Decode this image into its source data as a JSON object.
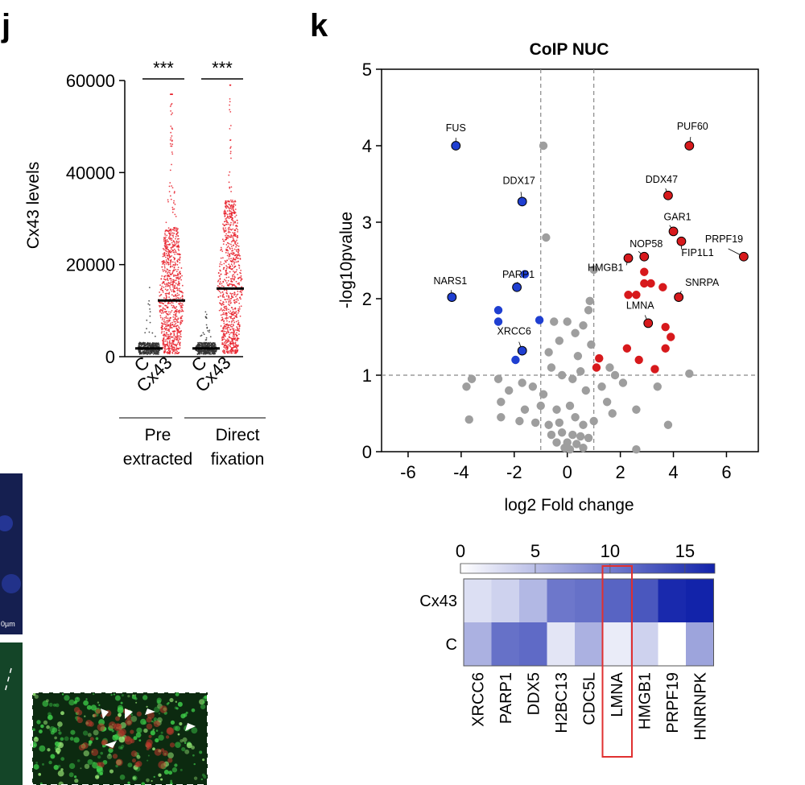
{
  "panels": {
    "j_letter": "j",
    "k_letter": "k"
  },
  "chart_data": [
    {
      "type": "scatter",
      "subtype": "dot-plot",
      "panel": "j",
      "ylabel": "Cx43 levels",
      "ylim": [
        0,
        60000
      ],
      "yticks": [
        0,
        20000,
        40000,
        60000
      ],
      "categories": [
        "C",
        "Cx43",
        "C",
        "Cx43"
      ],
      "groups": [
        {
          "name_line1": "Pre",
          "name_line2": "extracted",
          "categories": [
            "C",
            "Cx43"
          ]
        },
        {
          "name_line1": "Direct",
          "name_line2": "fixation",
          "categories": [
            "C",
            "Cx43"
          ]
        }
      ],
      "medians": [
        1800,
        12200,
        1800,
        14800
      ],
      "spread_max": [
        18000,
        57000,
        10500,
        59000
      ],
      "series_colors": [
        "#333333",
        "#e8202a",
        "#333333",
        "#e8202a"
      ],
      "significance": [
        "***",
        "***"
      ]
    },
    {
      "type": "scatter",
      "subtype": "volcano",
      "panel": "k",
      "title": "CoIP NUC",
      "xlabel": "log2 Fold change",
      "ylabel": "-log10pvalue",
      "xlim": [
        -7,
        7.2
      ],
      "ylim": [
        0,
        5
      ],
      "xticks": [
        -6,
        -4,
        -2,
        0,
        2,
        4,
        6
      ],
      "yticks": [
        0,
        1,
        2,
        3,
        4,
        5
      ],
      "thresholds": {
        "fold_change": [
          -1,
          1
        ],
        "pvalue": 1
      },
      "colors": {
        "up": "#d7191c",
        "down": "#1f3fd1",
        "ns": "#9e9e9e"
      },
      "labeled_points": [
        {
          "gene": "FUS",
          "x": -4.2,
          "y": 4.0,
          "group": "down"
        },
        {
          "gene": "DDX17",
          "x": -1.7,
          "y": 3.27,
          "group": "down"
        },
        {
          "gene": "NARS1",
          "x": -4.35,
          "y": 2.02,
          "group": "down"
        },
        {
          "gene": "PARP1",
          "x": -1.9,
          "y": 2.15,
          "group": "down"
        },
        {
          "gene": "XRCC6",
          "x": -1.7,
          "y": 1.32,
          "group": "down"
        },
        {
          "gene": "PUF60",
          "x": 4.6,
          "y": 4.0,
          "group": "up"
        },
        {
          "gene": "DDX47",
          "x": 3.8,
          "y": 3.35,
          "group": "up"
        },
        {
          "gene": "GAR1",
          "x": 4.0,
          "y": 2.88,
          "group": "up"
        },
        {
          "gene": "NOP58",
          "x": 2.9,
          "y": 2.55,
          "group": "up"
        },
        {
          "gene": "FIP1L1",
          "x": 4.3,
          "y": 2.75,
          "group": "up"
        },
        {
          "gene": "PRPF19",
          "x": 6.65,
          "y": 2.55,
          "group": "up"
        },
        {
          "gene": "HMGB1",
          "x": 2.3,
          "y": 2.53,
          "group": "up"
        },
        {
          "gene": "SNRPA",
          "x": 4.2,
          "y": 2.02,
          "group": "up"
        },
        {
          "gene": "LMNA",
          "x": 3.05,
          "y": 1.68,
          "group": "up"
        }
      ],
      "other_points": [
        {
          "x": -1.6,
          "y": 2.32,
          "group": "down"
        },
        {
          "x": -2.6,
          "y": 1.85,
          "group": "down"
        },
        {
          "x": -2.6,
          "y": 1.7,
          "group": "down"
        },
        {
          "x": -1.05,
          "y": 1.72,
          "group": "down"
        },
        {
          "x": -1.95,
          "y": 1.2,
          "group": "down"
        },
        {
          "x": 1.2,
          "y": 1.22,
          "group": "up"
        },
        {
          "x": 1.1,
          "y": 1.1,
          "group": "up"
        },
        {
          "x": 2.25,
          "y": 1.35,
          "group": "up"
        },
        {
          "x": 2.6,
          "y": 2.05,
          "group": "up"
        },
        {
          "x": 2.3,
          "y": 2.05,
          "group": "up"
        },
        {
          "x": 2.9,
          "y": 2.2,
          "group": "up"
        },
        {
          "x": 3.15,
          "y": 2.2,
          "group": "up"
        },
        {
          "x": 3.6,
          "y": 2.15,
          "group": "up"
        },
        {
          "x": 2.9,
          "y": 2.35,
          "group": "up"
        },
        {
          "x": 3.7,
          "y": 1.63,
          "group": "up"
        },
        {
          "x": 3.9,
          "y": 1.5,
          "group": "up"
        },
        {
          "x": 3.7,
          "y": 1.35,
          "group": "up"
        },
        {
          "x": 2.7,
          "y": 1.2,
          "group": "up"
        },
        {
          "x": 3.3,
          "y": 1.08,
          "group": "up"
        },
        {
          "x": -0.9,
          "y": 4.0,
          "group": "ns"
        },
        {
          "x": -0.8,
          "y": 2.8,
          "group": "ns"
        },
        {
          "x": 1.0,
          "y": 2.38,
          "group": "ns"
        },
        {
          "x": 0.85,
          "y": 1.97,
          "group": "ns"
        },
        {
          "x": 0.8,
          "y": 1.85,
          "group": "ns"
        },
        {
          "x": -0.5,
          "y": 1.7,
          "group": "ns"
        },
        {
          "x": 0.0,
          "y": 1.7,
          "group": "ns"
        },
        {
          "x": 0.6,
          "y": 1.65,
          "group": "ns"
        },
        {
          "x": 0.3,
          "y": 1.55,
          "group": "ns"
        },
        {
          "x": -0.3,
          "y": 1.45,
          "group": "ns"
        },
        {
          "x": 0.9,
          "y": 1.4,
          "group": "ns"
        },
        {
          "x": -0.7,
          "y": 1.3,
          "group": "ns"
        },
        {
          "x": 0.4,
          "y": 1.25,
          "group": "ns"
        },
        {
          "x": 1.6,
          "y": 1.1,
          "group": "ns"
        },
        {
          "x": 1.8,
          "y": 1.0,
          "group": "ns"
        },
        {
          "x": 4.6,
          "y": 1.02,
          "group": "ns"
        },
        {
          "x": -3.6,
          "y": 0.95,
          "group": "ns"
        },
        {
          "x": -3.8,
          "y": 0.85,
          "group": "ns"
        },
        {
          "x": -2.6,
          "y": 0.95,
          "group": "ns"
        },
        {
          "x": -2.2,
          "y": 0.8,
          "group": "ns"
        },
        {
          "x": -1.7,
          "y": 0.9,
          "group": "ns"
        },
        {
          "x": -1.3,
          "y": 0.85,
          "group": "ns"
        },
        {
          "x": -0.6,
          "y": 1.1,
          "group": "ns"
        },
        {
          "x": -0.2,
          "y": 1.0,
          "group": "ns"
        },
        {
          "x": 0.2,
          "y": 0.95,
          "group": "ns"
        },
        {
          "x": 0.5,
          "y": 1.05,
          "group": "ns"
        },
        {
          "x": 0.7,
          "y": 0.8,
          "group": "ns"
        },
        {
          "x": 1.3,
          "y": 0.85,
          "group": "ns"
        },
        {
          "x": 1.5,
          "y": 0.65,
          "group": "ns"
        },
        {
          "x": 2.1,
          "y": 0.9,
          "group": "ns"
        },
        {
          "x": 2.6,
          "y": 0.55,
          "group": "ns"
        },
        {
          "x": 3.4,
          "y": 0.85,
          "group": "ns"
        },
        {
          "x": 3.8,
          "y": 0.35,
          "group": "ns"
        },
        {
          "x": -2.5,
          "y": 0.65,
          "group": "ns"
        },
        {
          "x": -1.6,
          "y": 0.55,
          "group": "ns"
        },
        {
          "x": -1.0,
          "y": 0.6,
          "group": "ns"
        },
        {
          "x": -0.4,
          "y": 0.55,
          "group": "ns"
        },
        {
          "x": 0.1,
          "y": 0.6,
          "group": "ns"
        },
        {
          "x": -3.7,
          "y": 0.42,
          "group": "ns"
        },
        {
          "x": -2.5,
          "y": 0.45,
          "group": "ns"
        },
        {
          "x": -1.8,
          "y": 0.4,
          "group": "ns"
        },
        {
          "x": -1.2,
          "y": 0.38,
          "group": "ns"
        },
        {
          "x": -0.7,
          "y": 0.35,
          "group": "ns"
        },
        {
          "x": -0.3,
          "y": 0.38,
          "group": "ns"
        },
        {
          "x": 0.3,
          "y": 0.45,
          "group": "ns"
        },
        {
          "x": 0.6,
          "y": 0.35,
          "group": "ns"
        },
        {
          "x": 1.0,
          "y": 0.4,
          "group": "ns"
        },
        {
          "x": -0.6,
          "y": 0.22,
          "group": "ns"
        },
        {
          "x": -0.2,
          "y": 0.25,
          "group": "ns"
        },
        {
          "x": 0.2,
          "y": 0.22,
          "group": "ns"
        },
        {
          "x": 0.5,
          "y": 0.2,
          "group": "ns"
        },
        {
          "x": 0.8,
          "y": 0.18,
          "group": "ns"
        },
        {
          "x": -0.4,
          "y": 0.12,
          "group": "ns"
        },
        {
          "x": 0.0,
          "y": 0.12,
          "group": "ns"
        },
        {
          "x": 0.35,
          "y": 0.1,
          "group": "ns"
        },
        {
          "x": -0.1,
          "y": 0.05,
          "group": "ns"
        },
        {
          "x": 0.1,
          "y": 0.03,
          "group": "ns"
        },
        {
          "x": 0.6,
          "y": 0.05,
          "group": "ns"
        },
        {
          "x": 2.6,
          "y": 0.03,
          "group": "ns"
        },
        {
          "x": -0.9,
          "y": 0.75,
          "group": "ns"
        },
        {
          "x": 1.7,
          "y": 0.5,
          "group": "ns"
        }
      ]
    },
    {
      "type": "heatmap",
      "panel": "k",
      "colorbar_ticks": [
        0,
        5,
        10,
        15
      ],
      "colorbar_range": [
        0,
        17
      ],
      "rows": [
        "Cx43",
        "C"
      ],
      "columns": [
        "XRCC6",
        "PARP1",
        "DDX5",
        "H2BC13",
        "CDC5L",
        "LMNA",
        "HMGB1",
        "PRPF19",
        "HNRNPK"
      ],
      "values": [
        [
          2.5,
          3.5,
          5.5,
          10.5,
          11.0,
          12.0,
          13.0,
          16.5,
          17.0
        ],
        [
          6.0,
          11.0,
          11.5,
          2.0,
          6.0,
          1.5,
          3.5,
          0.0,
          7.0
        ]
      ],
      "highlight_column": "LMNA",
      "highlight_color": "#e03030"
    }
  ],
  "image_insets": {
    "scale_bar_label": "0µm"
  }
}
